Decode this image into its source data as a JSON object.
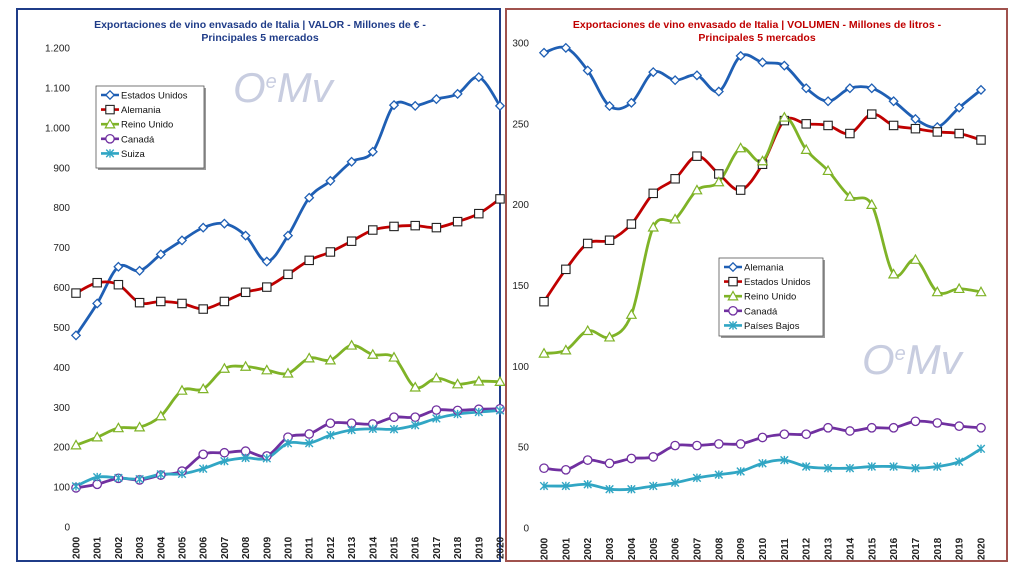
{
  "colors": {
    "left_border": "#1f3c88",
    "right_border": "#a0524d",
    "left_title": "#1f3c88",
    "right_title": "#c00000"
  },
  "watermark": "OeMv",
  "chart_data": [
    {
      "type": "line",
      "title_line1": "Exportaciones de vino envasado de Italia | VALOR - Millones de € -",
      "title_line2": "Principales 5 mercados",
      "x": [
        "2000",
        "2001",
        "2002",
        "2003",
        "2004",
        "2005",
        "2006",
        "2007",
        "2008",
        "2009",
        "2010",
        "2011",
        "2012",
        "2013",
        "2014",
        "2015",
        "2016",
        "2017",
        "2018",
        "2019",
        "2020"
      ],
      "ylim": [
        0,
        1200
      ],
      "yticks": [
        0,
        100,
        200,
        300,
        400,
        500,
        600,
        700,
        800,
        900,
        1000,
        1100,
        1200
      ],
      "ytick_labels": [
        "0",
        "100",
        "200",
        "300",
        "400",
        "500",
        "600",
        "700",
        "800",
        "900",
        "1.000",
        "1.100",
        "1.200"
      ],
      "legend_position": "top-left",
      "series": [
        {
          "name": "Estados Unidos",
          "color": "#1f5fb4",
          "marker": "diamond",
          "values": [
            480,
            560,
            652,
            642,
            683,
            718,
            750,
            760,
            730,
            665,
            730,
            825,
            867,
            915,
            940,
            1057,
            1055,
            1072,
            1085,
            1127,
            1055
          ]
        },
        {
          "name": "Alemania",
          "color": "#c00000",
          "marker": "square",
          "values": [
            586,
            612,
            607,
            562,
            565,
            560,
            546,
            565,
            588,
            601,
            633,
            668,
            689,
            716,
            744,
            753,
            755,
            750,
            765,
            785,
            822
          ]
        },
        {
          "name": "Reino Unido",
          "color": "#7fb327",
          "marker": "triangle",
          "values": [
            205,
            225,
            248,
            250,
            278,
            342,
            346,
            397,
            402,
            393,
            385,
            423,
            418,
            455,
            432,
            425,
            350,
            373,
            358,
            365,
            364
          ]
        },
        {
          "name": "Canadá",
          "color": "#7030a0",
          "marker": "circle",
          "values": [
            98,
            107,
            122,
            118,
            130,
            140,
            182,
            186,
            190,
            178,
            225,
            233,
            260,
            260,
            258,
            275,
            275,
            293,
            292,
            295,
            296
          ]
        },
        {
          "name": "Suiza",
          "color": "#31a6c4",
          "marker": "star",
          "values": [
            102,
            125,
            123,
            120,
            132,
            133,
            146,
            165,
            173,
            172,
            210,
            210,
            230,
            243,
            246,
            245,
            255,
            272,
            283,
            288,
            292
          ]
        }
      ]
    },
    {
      "type": "line",
      "title_line1": "Exportaciones de vino envasado de Italia | VOLUMEN - Millones de litros -",
      "title_line2": "Principales 5 mercados",
      "x": [
        "2000",
        "2001",
        "2002",
        "2003",
        "2004",
        "2005",
        "2006",
        "2007",
        "2008",
        "2009",
        "2010",
        "2011",
        "2012",
        "2013",
        "2014",
        "2015",
        "2016",
        "2017",
        "2018",
        "2019",
        "2020"
      ],
      "ylim": [
        0,
        300
      ],
      "yticks": [
        0,
        50,
        100,
        150,
        200,
        250,
        300
      ],
      "ytick_labels": [
        "0",
        "50",
        "100",
        "150",
        "200",
        "250",
        "300"
      ],
      "legend_position": "center",
      "series": [
        {
          "name": "Alemania",
          "color": "#1f5fb4",
          "marker": "diamond",
          "values": [
            294,
            297,
            283,
            261,
            263,
            282,
            277,
            280,
            270,
            292,
            288,
            286,
            272,
            264,
            272,
            272,
            264,
            253,
            248,
            260,
            271
          ]
        },
        {
          "name": "Estados Unidos",
          "color": "#c00000",
          "marker": "square",
          "values": [
            140,
            160,
            176,
            178,
            188,
            207,
            216,
            230,
            219,
            209,
            225,
            252,
            250,
            249,
            244,
            256,
            249,
            247,
            245,
            244,
            240
          ]
        },
        {
          "name": "Reino Unido",
          "color": "#7fb327",
          "marker": "triangle",
          "values": [
            108,
            110,
            122,
            118,
            132,
            186,
            191,
            209,
            214,
            235,
            227,
            254,
            234,
            221,
            205,
            200,
            157,
            166,
            146,
            148,
            146
          ]
        },
        {
          "name": "Canadá",
          "color": "#7030a0",
          "marker": "circle",
          "values": [
            37,
            36,
            42,
            40,
            43,
            44,
            51,
            51,
            52,
            52,
            56,
            58,
            58,
            62,
            60,
            62,
            62,
            66,
            65,
            63,
            62
          ]
        },
        {
          "name": "Países Bajos",
          "color": "#31a6c4",
          "marker": "star",
          "values": [
            26,
            26,
            27,
            24,
            24,
            26,
            28,
            31,
            33,
            35,
            40,
            42,
            38,
            37,
            37,
            38,
            38,
            37,
            38,
            41,
            49
          ]
        }
      ]
    }
  ]
}
